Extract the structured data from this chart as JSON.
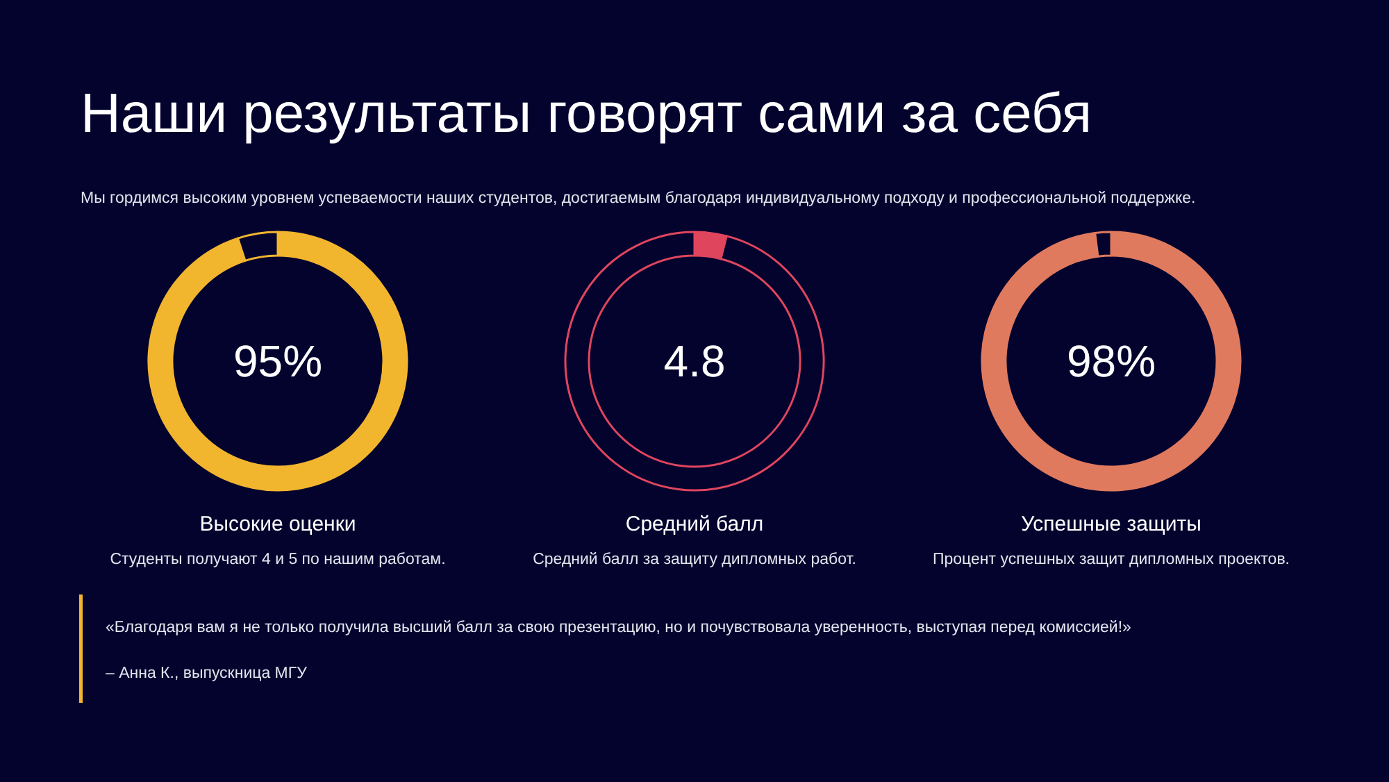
{
  "chart_data": [
    {
      "type": "other",
      "title": "Наши результаты говорят сами за себя",
      "subtitle": "Мы гордимся высоким уровнем успеваемости наших студентов, достигаемым благодаря индивидуальному подходу и профессиональной поддержке."
    },
    {
      "type": "donut",
      "title": "Высокие оценки",
      "subtitle": "Студенты получают 4 и 5 по нашим работам.",
      "categories": [
        null,
        null
      ],
      "values": [
        95,
        5
      ],
      "colors": [
        "#f2b52e",
        "#03032e"
      ],
      "value_labels": [
        "95%",
        null
      ]
    },
    {
      "type": "donut",
      "title": "Средний балл",
      "subtitle": "Средний балл за защиту дипломных работ.",
      "categories": [
        null,
        null
      ],
      "values": [
        0.2,
        4.8
      ],
      "colors": [
        "#e0455e",
        "#03032e"
      ],
      "value_labels": [
        null,
        "4.8"
      ]
    },
    {
      "type": "donut",
      "title": "Успешные защиты",
      "subtitle": "Процент успешных защит дипломных проектов.",
      "categories": [
        null,
        null
      ],
      "values": [
        98,
        2
      ],
      "colors": [
        "#e07a5e",
        "#03032e"
      ],
      "value_labels": [
        "98%",
        null
      ]
    },
    {
      "type": "other",
      "annotations": [
        "«Благодаря вам я не только получила высший балл за свою презентацию, но и почувствовала уверенность, выступая перед комиссией!»",
        "– Анна К., выпускница МГУ"
      ]
    }
  ]
}
